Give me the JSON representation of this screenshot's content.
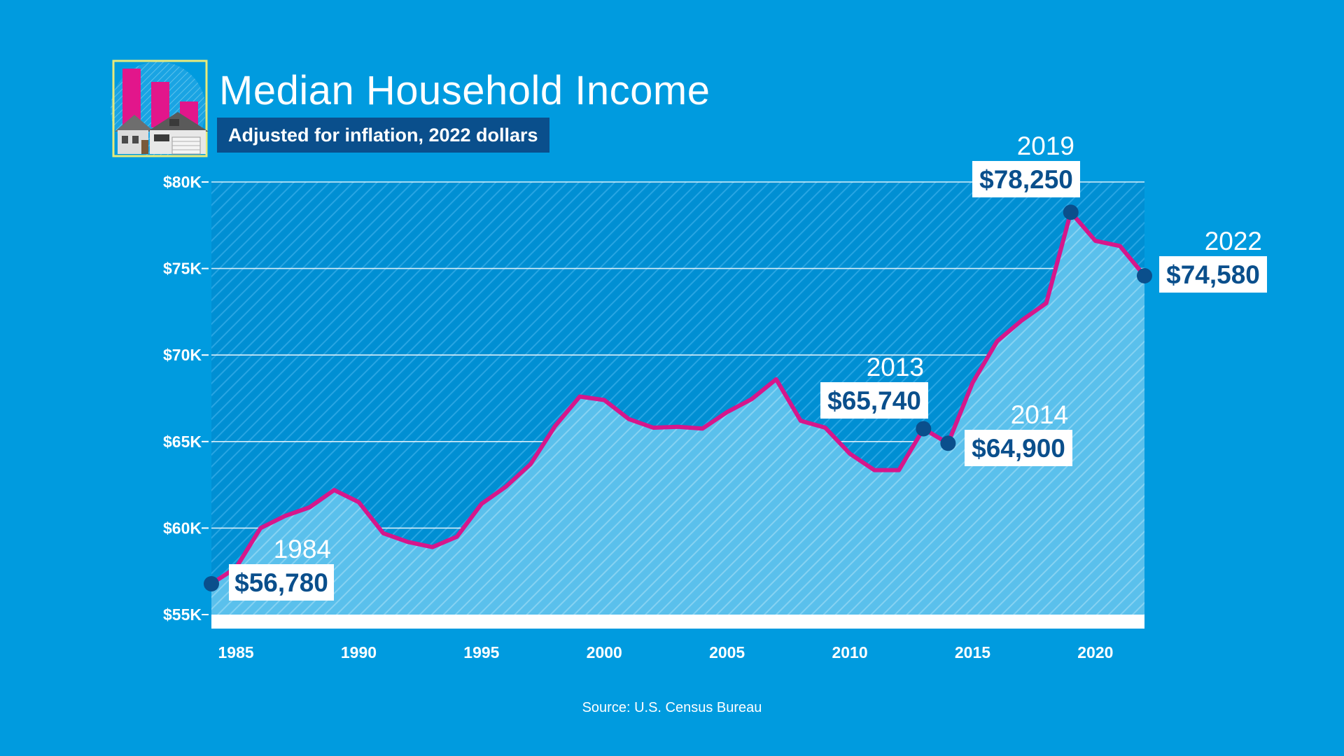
{
  "title": "Median Household Income",
  "subtitle": "Adjusted for inflation, 2022 dollars",
  "source": "Source: U.S. Census Bureau",
  "colors": {
    "background": "#009bdf",
    "line": "#d6168b",
    "marker": "#0a4f8c",
    "label_text": "#0a4f8c",
    "subtitle_bg": "#0a4f8c",
    "icon_frame": "#e9ea7a",
    "icon_bars": "#e2168b"
  },
  "icon": "house-with-bar-chart-icon",
  "chart_data": {
    "type": "area",
    "xlabel": "",
    "ylabel": "",
    "xlim": [
      1984,
      2022
    ],
    "ylim": [
      55000,
      80000
    ],
    "x_ticks": [
      1985,
      1990,
      1995,
      2000,
      2005,
      2010,
      2015,
      2020
    ],
    "y_ticks": [
      {
        "value": 55000,
        "label": "$55K"
      },
      {
        "value": 60000,
        "label": "$60K"
      },
      {
        "value": 65000,
        "label": "$65K"
      },
      {
        "value": 70000,
        "label": "$70K"
      },
      {
        "value": 75000,
        "label": "$75K"
      },
      {
        "value": 80000,
        "label": "$80K"
      }
    ],
    "grid": true,
    "series": [
      {
        "x": [
          1984,
          1985,
          1986,
          1987,
          1988,
          1989,
          1990,
          1991,
          1992,
          1993,
          1994,
          1995,
          1996,
          1997,
          1998,
          1999,
          2000,
          2001,
          2002,
          2003,
          2004,
          2005,
          2006,
          2007,
          2008,
          2009,
          2010,
          2011,
          2012,
          2013,
          2014,
          2015,
          2016,
          2017,
          2018,
          2019,
          2020,
          2021,
          2022
        ],
        "values": [
          56780,
          57700,
          60000,
          60700,
          61200,
          62200,
          61500,
          59700,
          59200,
          58900,
          59500,
          61400,
          62400,
          63700,
          65900,
          67600,
          67400,
          66300,
          65800,
          65850,
          65750,
          66700,
          67450,
          68600,
          66200,
          65800,
          64300,
          63350,
          63350,
          65740,
          64900,
          68400,
          70800,
          72000,
          73000,
          78250,
          76600,
          76300,
          74580
        ]
      }
    ],
    "annotations": [
      {
        "x": 1984,
        "value": 56780,
        "year_label": "1984",
        "value_label": "$56,780"
      },
      {
        "x": 2013,
        "value": 65740,
        "year_label": "2013",
        "value_label": "$65,740"
      },
      {
        "x": 2014,
        "value": 64900,
        "year_label": "2014",
        "value_label": "$64,900"
      },
      {
        "x": 2019,
        "value": 78250,
        "year_label": "2019",
        "value_label": "$78,250"
      },
      {
        "x": 2022,
        "value": 74580,
        "year_label": "2022",
        "value_label": "$74,580"
      }
    ]
  }
}
